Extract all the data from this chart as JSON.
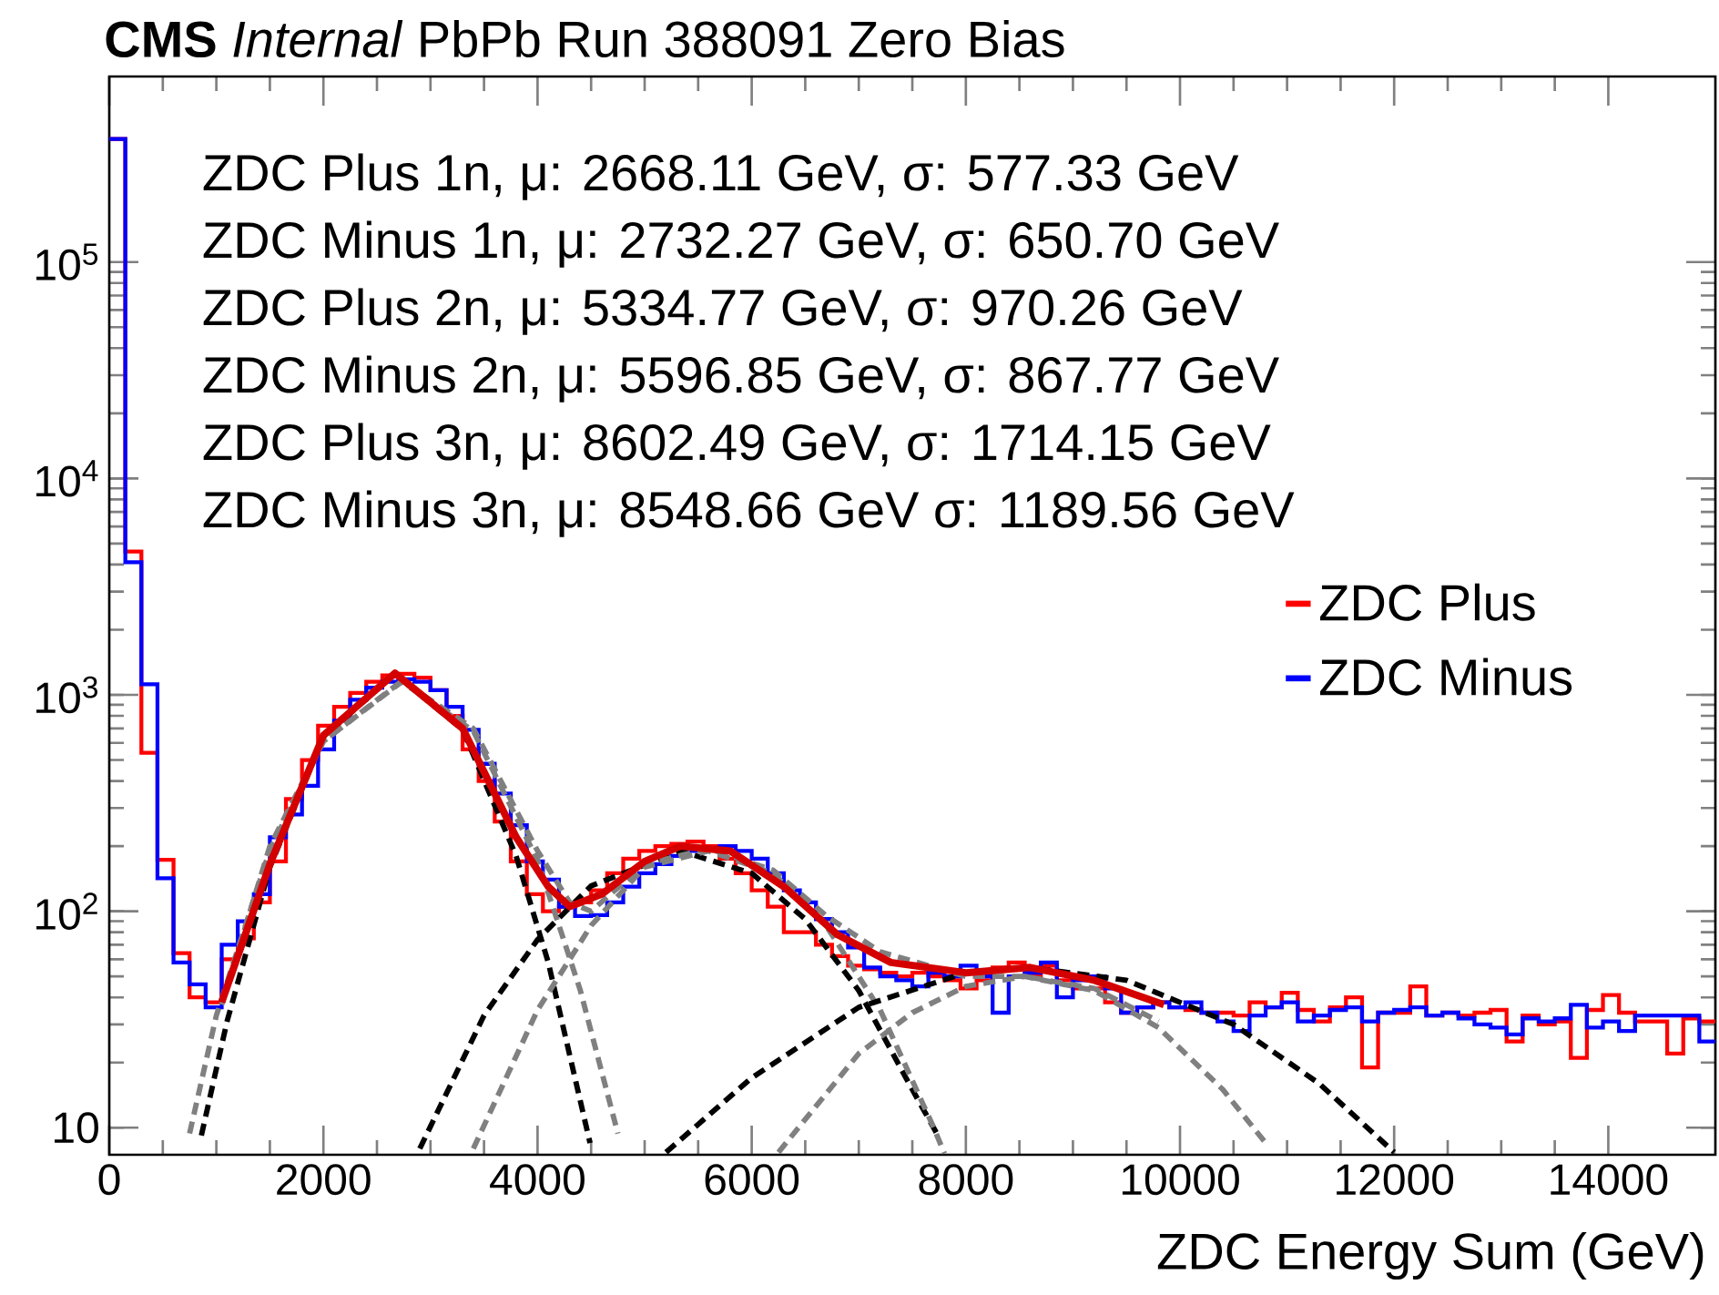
{
  "chart_data": {
    "type": "histogram",
    "title": "**CMS** *Internal* PbPb Run 388091 Zero Bias",
    "xlabel": "ZDC Energy Sum (GeV)",
    "log": true,
    "legend": "right",
    "xlim": [
      0,
      15000
    ],
    "xticks": [
      0,
      2000,
      4000,
      6000,
      8000,
      10000,
      12000,
      14000
    ],
    "ylim": [
      7.5,
      720000
    ],
    "yticks": [
      10,
      {
        "value": 100,
        "label": "10$^{2}$"
      },
      {
        "value": 1000,
        "label": "10$^{3}$"
      },
      {
        "value": 10000,
        "label": "10$^{4}$"
      },
      {
        "value": 100000,
        "label": "10$^{5}$"
      }
    ],
    "annotations": [
      "ZDC Plus 1n,  μ: 2668.11 GeV, σ: 577.33 GeV",
      "ZDC Minus 1n,  μ: 2732.27 GeV, σ: 650.70 GeV",
      "ZDC Plus 2n,  μ: 5334.77 GeV, σ: 970.26 GeV",
      "ZDC Minus 2n,  μ: 5596.85 GeV, σ: 867.77 GeV",
      "ZDC Plus 3n,  μ: 8602.49 GeV, σ: 1714.15 GeV",
      "ZDC Minus 3n,  μ: 8548.66 GeV σ: 1189.56 GeV"
    ],
    "bins": [
      0,
      150,
      300,
      450,
      600,
      750,
      900,
      1050,
      1200,
      1350,
      1500,
      1650,
      1800,
      1950,
      2100,
      2250,
      2400,
      2550,
      2700,
      2850,
      3000,
      3150,
      3300,
      3450,
      3600,
      3750,
      3900,
      4050,
      4200,
      4350,
      4500,
      4650,
      4800,
      4950,
      5100,
      5250,
      5400,
      5550,
      5700,
      5850,
      6000,
      6150,
      6300,
      6450,
      6600,
      6750,
      6900,
      7050,
      7200,
      7350,
      7500,
      7650,
      7800,
      7950,
      8100,
      8250,
      8400,
      8550,
      8700,
      8850,
      9000,
      9150,
      9300,
      9450,
      9600,
      9750,
      9900,
      10050,
      10200,
      10350,
      10500,
      10650,
      10800,
      10950,
      11100,
      11250,
      11400,
      11550,
      11700,
      11850,
      12000,
      12150,
      12300,
      12450,
      12600,
      12750,
      12900,
      13050,
      13200,
      13350,
      13500,
      13650,
      13800,
      13950,
      14100,
      14250,
      14400,
      14550,
      14700,
      14850,
      15000
    ],
    "series": [
      {
        "name": "ZDC Plus",
        "color": "#ff0000",
        "values": [
          370000,
          4600,
          540,
          173,
          64,
          40,
          38,
          60,
          75,
          110,
          170,
          330,
          500,
          720,
          880,
          1020,
          1150,
          1230,
          1250,
          1200,
          1050,
          800,
          560,
          400,
          260,
          170,
          120,
          100,
          105,
          110,
          125,
          150,
          175,
          190,
          200,
          205,
          210,
          200,
          175,
          150,
          125,
          105,
          80,
          80,
          70,
          62,
          56,
          54,
          52,
          50,
          52,
          50,
          48,
          44,
          48,
          55,
          58,
          50,
          56,
          48,
          44,
          44,
          38,
          34,
          36,
          38,
          36,
          35,
          34,
          34,
          33,
          38,
          36,
          42,
          35,
          31,
          36,
          40,
          19,
          34,
          34,
          45,
          33,
          34,
          33,
          34,
          35,
          25,
          33,
          30,
          31,
          21,
          35,
          41,
          34,
          31,
          31,
          22,
          32,
          31
        ]
      },
      {
        "name": "ZDC Minus",
        "color": "#0000ff",
        "values": [
          370000,
          4100,
          1120,
          142,
          58,
          46,
          36,
          70,
          90,
          120,
          220,
          280,
          380,
          560,
          760,
          950,
          1080,
          1150,
          1180,
          1150,
          1050,
          880,
          690,
          480,
          350,
          250,
          170,
          140,
          105,
          95,
          96,
          110,
          130,
          150,
          165,
          180,
          190,
          195,
          200,
          190,
          175,
          150,
          125,
          110,
          92,
          80,
          68,
          55,
          50,
          48,
          45,
          52,
          50,
          56,
          50,
          34,
          50,
          52,
          58,
          40,
          48,
          50,
          44,
          34,
          36,
          38,
          36,
          38,
          34,
          31,
          28,
          33,
          36,
          38,
          31,
          33,
          35,
          36,
          31,
          34,
          35,
          36,
          33,
          34,
          32,
          30,
          29,
          27,
          32,
          31,
          32,
          37,
          29,
          31,
          28,
          33,
          33,
          33,
          33,
          25
        ]
      },
      {
        "type": "line",
        "color": "#000000",
        "line_style": "dashed",
        "x": [
          860,
          1100,
          1500,
          2000,
          2668,
          3300,
          3800,
          4100,
          4490
        ],
        "values": [
          9.2,
          31,
          160,
          640,
          1250,
          690,
          180,
          58,
          8.5
        ]
      },
      {
        "type": "line",
        "color": "#808080",
        "line_style": "dashed",
        "x": [
          750,
          1000,
          1500,
          2000,
          2732,
          3400,
          4000,
          4400,
          4750
        ],
        "values": [
          9.4,
          33,
          192,
          610,
          1150,
          680,
          172,
          43,
          9.4
        ]
      },
      {
        "type": "line",
        "color": "#000000",
        "line_style": "dashed",
        "x": [
          2900,
          3500,
          4000,
          4500,
          5334,
          6000,
          6500,
          7000,
          7500,
          7750
        ],
        "values": [
          8,
          33,
          74,
          131,
          190,
          150,
          92,
          43,
          15,
          9
        ]
      },
      {
        "type": "line",
        "color": "#808080",
        "line_style": "dashed",
        "x": [
          3400,
          4000,
          4500,
          5000,
          5597,
          6200,
          6700,
          7200,
          7700,
          7800
        ],
        "values": [
          8,
          35,
          86,
          160,
          190,
          150,
          85,
          35,
          10,
          7.6
        ]
      },
      {
        "type": "line",
        "color": "#000000",
        "line_style": "dashed",
        "x": [
          5200,
          6000,
          7000,
          8000,
          8602,
          9500,
          10500,
          11300,
          12000
        ],
        "values": [
          7.7,
          17,
          36,
          52,
          55,
          48,
          30,
          16,
          7.7
        ]
      },
      {
        "type": "line",
        "color": "#808080",
        "line_style": "dashed",
        "x": [
          6250,
          7000,
          7500,
          8000,
          8549,
          9200,
          9800,
          10400,
          10800
        ],
        "values": [
          7.7,
          22,
          34,
          45,
          50,
          43,
          29,
          15,
          8.5
        ]
      },
      {
        "type": "line",
        "color": "#808080",
        "line_style": "dashed",
        "x": [
          1050,
          1500,
          2000,
          2732,
          3400,
          4000,
          4300,
          4500,
          5000,
          5600,
          6200,
          6700,
          7200,
          8000,
          8549,
          9200,
          9800
        ],
        "values": [
          37,
          200,
          610,
          1160,
          700,
          190,
          110,
          100,
          165,
          195,
          155,
          95,
          65,
          50,
          50,
          44,
          31
        ]
      },
      {
        "type": "line",
        "color": "#d40000",
        "line_style": "solid",
        "x": [
          1050,
          1500,
          2000,
          2668,
          3300,
          3800,
          4100,
          4300,
          4600,
          5000,
          5334,
          5800,
          6300,
          6800,
          7300,
          8000,
          8600,
          9200,
          9850
        ],
        "values": [
          38,
          165,
          650,
          1260,
          700,
          220,
          130,
          105,
          120,
          170,
          200,
          190,
          130,
          78,
          58,
          52,
          55,
          48,
          37
        ]
      }
    ]
  }
}
